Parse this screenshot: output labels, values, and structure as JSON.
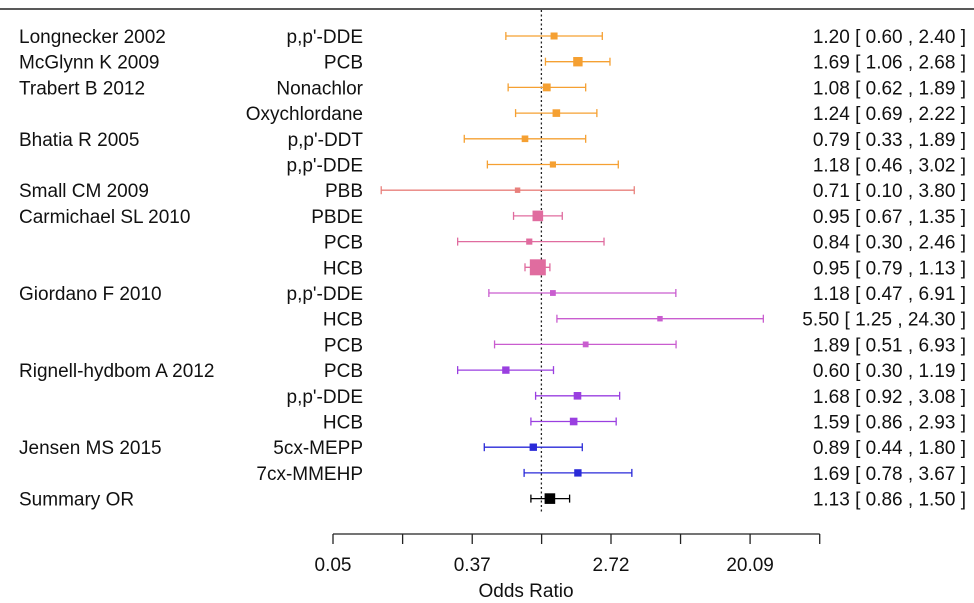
{
  "chart_data": {
    "type": "forest",
    "xlabel": "Odds Ratio",
    "x_scale": "log",
    "xlim": [
      0.05,
      60
    ],
    "reference_line": 1,
    "ticks": [
      "0.05",
      "0.37",
      "2.72",
      "20.09"
    ],
    "tick_values": [
      0.05,
      0.37,
      2.72,
      20.09
    ],
    "rows": [
      {
        "study": "Longnecker  2002",
        "exposure": "p,p'-DDE",
        "or": 1.2,
        "lo": 0.6,
        "hi": 2.4,
        "label": "1.20 [ 0.60 ,  2.40 ]",
        "color": "#f5a032",
        "weight": 0.25
      },
      {
        "study": "McGlynn K 2009",
        "exposure": "PCB",
        "or": 1.69,
        "lo": 1.06,
        "hi": 2.68,
        "label": "1.69 [ 1.06 ,  2.68 ]",
        "color": "#f5a032",
        "weight": 0.45
      },
      {
        "study": "Trabert B 2012",
        "exposure": "Nonachlor",
        "or": 1.08,
        "lo": 0.62,
        "hi": 1.89,
        "label": "1.08 [ 0.62 ,  1.89 ]",
        "color": "#f5a032",
        "weight": 0.32
      },
      {
        "study": "",
        "exposure": "Oxychlordane",
        "or": 1.24,
        "lo": 0.69,
        "hi": 2.22,
        "label": "1.24 [ 0.69 ,  2.22 ]",
        "color": "#f5a032",
        "weight": 0.3
      },
      {
        "study": "Bhatia R 2005",
        "exposure": "p,p'-DDT",
        "or": 0.79,
        "lo": 0.33,
        "hi": 1.89,
        "label": "0.79 [ 0.33 ,  1.89 ]",
        "color": "#f5a032",
        "weight": 0.22
      },
      {
        "study": "",
        "exposure": "p,p'-DDE",
        "or": 1.18,
        "lo": 0.46,
        "hi": 3.02,
        "label": "1.18 [ 0.46 ,  3.02 ]",
        "color": "#f5a032",
        "weight": 0.18
      },
      {
        "study": "Small CM 2009",
        "exposure": "PBB",
        "or": 0.71,
        "lo": 0.1,
        "hi": 3.8,
        "label": "0.71 [ 0.10 ,  3.80 ]",
        "color": "#e8807c",
        "weight": 0.12
      },
      {
        "study": "Carmichael SL 2010",
        "exposure": "PBDE",
        "or": 0.95,
        "lo": 0.67,
        "hi": 1.35,
        "label": "0.95 [ 0.67 ,  1.35 ]",
        "color": "#e06c9f",
        "weight": 0.55
      },
      {
        "study": "",
        "exposure": "PCB",
        "or": 0.84,
        "lo": 0.3,
        "hi": 2.46,
        "label": "0.84 [ 0.30 ,  2.46 ]",
        "color": "#e06c9f",
        "weight": 0.18
      },
      {
        "study": "",
        "exposure": "HCB",
        "or": 0.95,
        "lo": 0.79,
        "hi": 1.13,
        "label": "0.95 [ 0.79 ,  1.13 ]",
        "color": "#e06c9f",
        "weight": 1.0
      },
      {
        "study": "Giordano F 2010",
        "exposure": "p,p'-DDE",
        "or": 1.18,
        "lo": 0.47,
        "hi": 6.91,
        "label": "1.18 [ 0.47 ,  6.91 ]",
        "color": "#c95dcf",
        "weight": 0.15
      },
      {
        "study": "",
        "exposure": "HCB",
        "or": 5.5,
        "lo": 1.25,
        "hi": 24.3,
        "label": "5.50 [ 1.25 , 24.30 ]",
        "color": "#c95dcf",
        "weight": 0.12
      },
      {
        "study": "",
        "exposure": "PCB",
        "or": 1.89,
        "lo": 0.51,
        "hi": 6.93,
        "label": "1.89 [ 0.51 ,  6.93 ]",
        "color": "#c95dcf",
        "weight": 0.15
      },
      {
        "study": "Rignell-hydbom A  2012",
        "exposure": "PCB",
        "or": 0.6,
        "lo": 0.3,
        "hi": 1.19,
        "label": "0.60 [ 0.30 ,  1.19 ]",
        "color": "#9a3fe0",
        "weight": 0.28
      },
      {
        "study": "",
        "exposure": "p,p'-DDE",
        "or": 1.68,
        "lo": 0.92,
        "hi": 3.08,
        "label": "1.68 [ 0.92 ,  3.08 ]",
        "color": "#9a3fe0",
        "weight": 0.3
      },
      {
        "study": "",
        "exposure": "HCB",
        "or": 1.59,
        "lo": 0.86,
        "hi": 2.93,
        "label": "1.59 [ 0.86 ,  2.93 ]",
        "color": "#9a3fe0",
        "weight": 0.3
      },
      {
        "study": "Jensen MS 2015",
        "exposure": "5cx-MEPP",
        "or": 0.89,
        "lo": 0.44,
        "hi": 1.8,
        "label": "0.89 [ 0.44 ,  1.80 ]",
        "color": "#2a2ad8",
        "weight": 0.28
      },
      {
        "study": "",
        "exposure": "7cx-MMEHP",
        "or": 1.69,
        "lo": 0.78,
        "hi": 3.67,
        "label": "1.69 [ 0.78 ,  3.67 ]",
        "color": "#2a2ad8",
        "weight": 0.28
      },
      {
        "study": "Summary OR",
        "exposure": "",
        "or": 1.13,
        "lo": 0.86,
        "hi": 1.5,
        "label": "1.13 [ 0.86 ,  1.50 ]",
        "color": "#000000",
        "weight": 0.55
      }
    ]
  }
}
